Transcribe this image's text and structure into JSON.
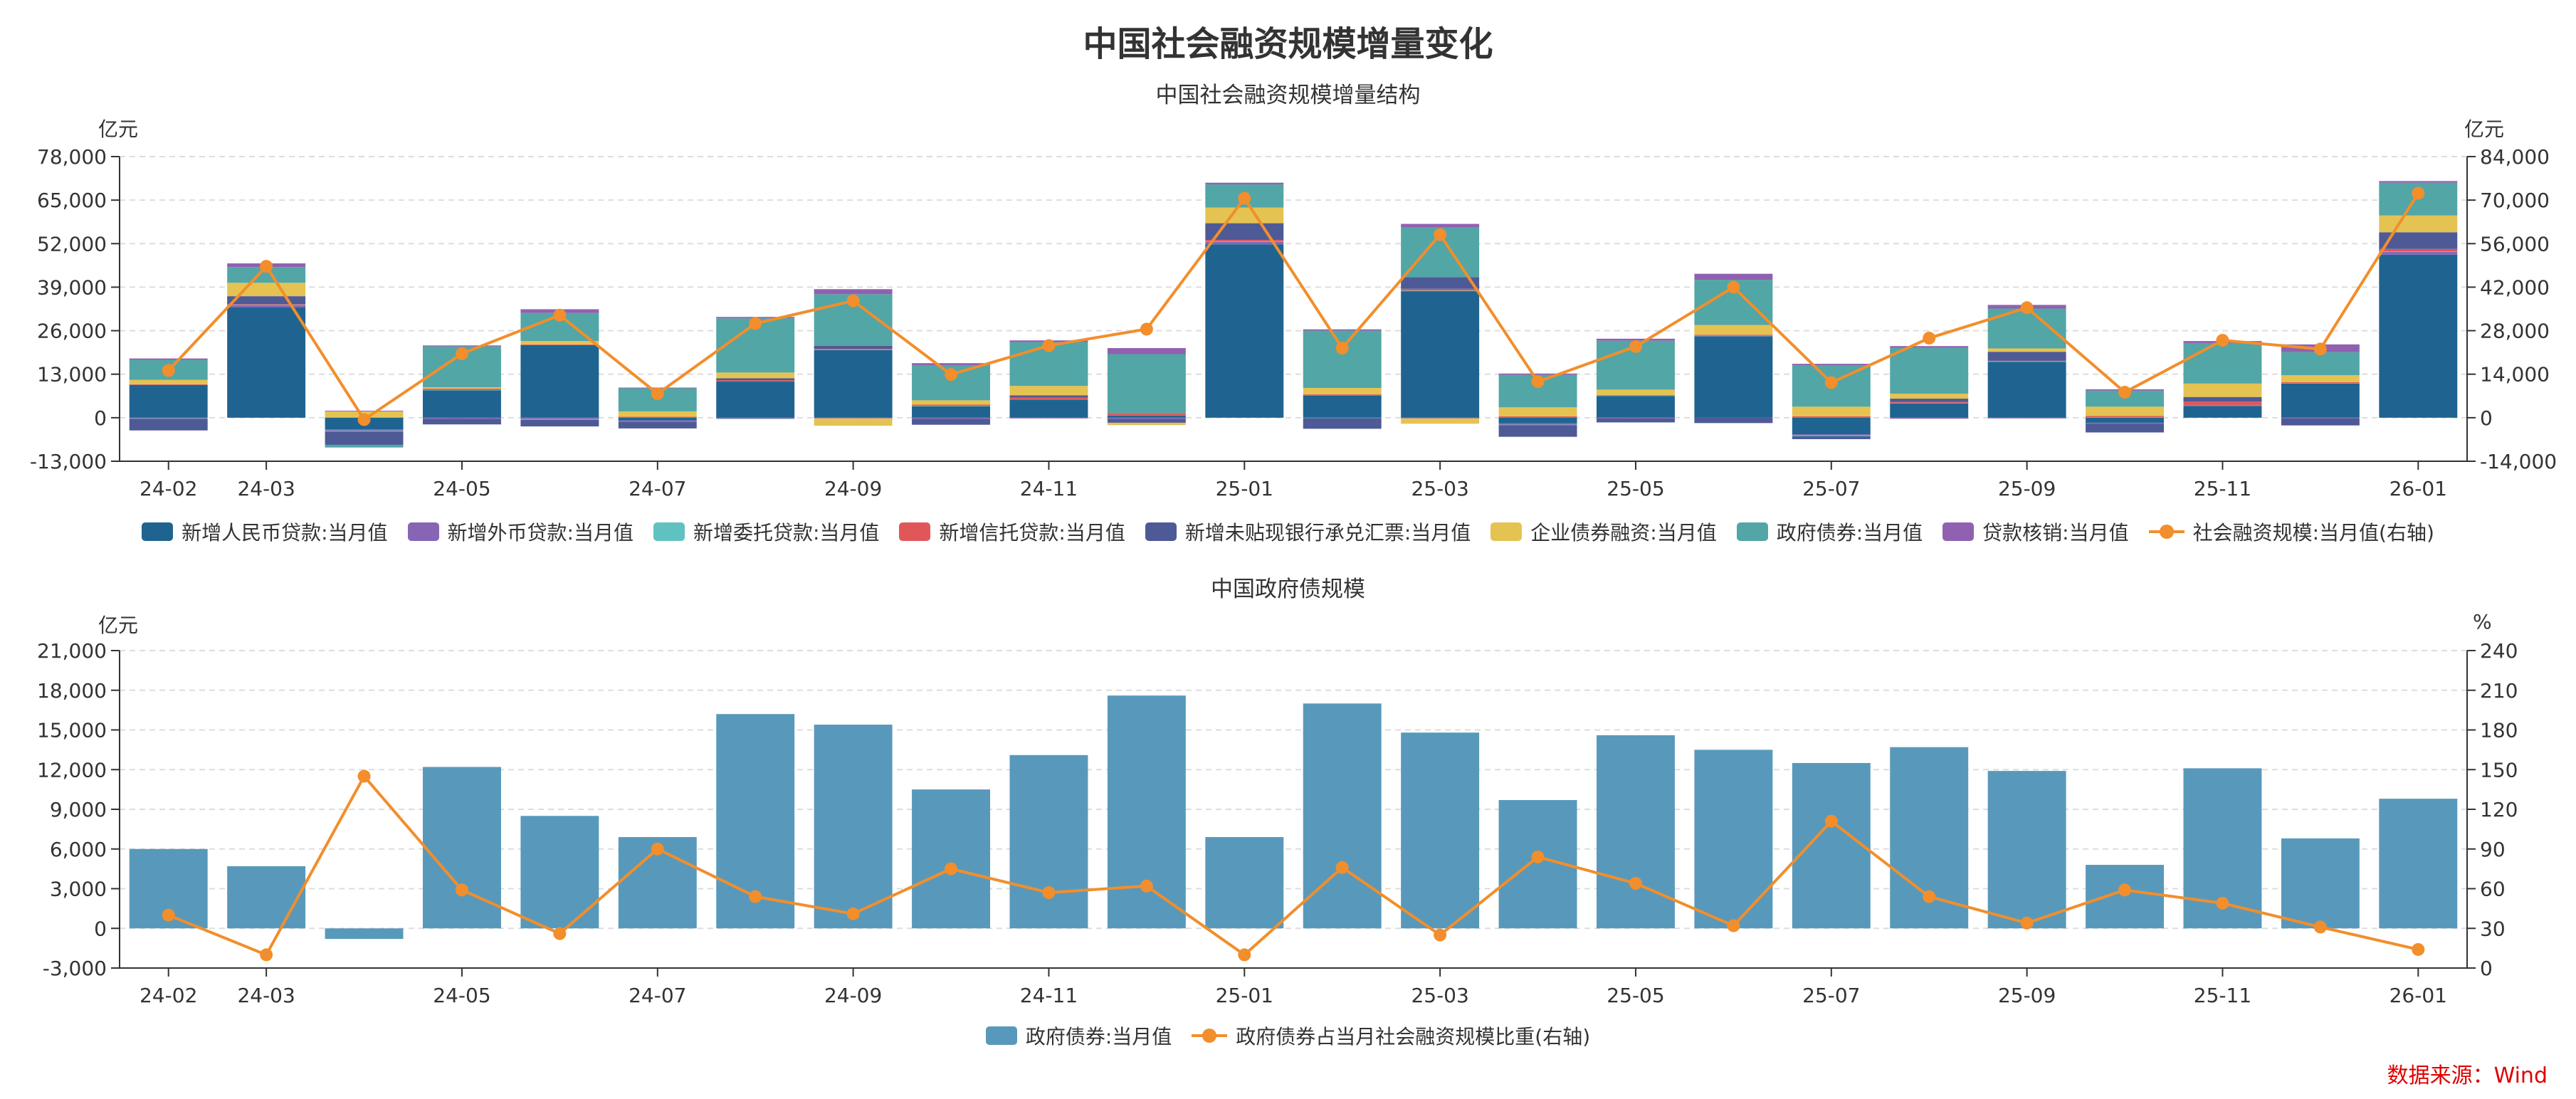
{
  "title": "中国社会融资规模增量变化",
  "source": "数据来源：Wind",
  "colors": {
    "rmb_loans": "#1f6490",
    "fx_loans": "#8765b5",
    "entrusted_loans": "#5fc2c0",
    "trust_loans": "#e15759",
    "bank_acceptance": "#4e5a96",
    "corp_bonds": "#e4c352",
    "gov_bonds": "#52a6a6",
    "loan_writeoffs": "#9061b0",
    "tsf_line": "#f28e2b",
    "gov_bar": "#5899bb"
  },
  "chart_data": [
    {
      "type": "bar",
      "subtype": "stacked bar with line on right axis",
      "subtitle": "中国社会融资规模增量结构",
      "left_unit": "亿元",
      "right_unit": "亿元",
      "ylim_left": [
        -13000,
        78000
      ],
      "left_ticks": [
        -13000,
        0,
        13000,
        26000,
        39000,
        52000,
        65000,
        78000
      ],
      "left_tick_labels": [
        "-13,000",
        "0",
        "13,000",
        "26,000",
        "39,000",
        "52,000",
        "65,000",
        "78,000"
      ],
      "ylim_right": [
        -14000,
        84000
      ],
      "right_ticks": [
        -14000,
        0,
        14000,
        28000,
        42000,
        56000,
        70000,
        84000
      ],
      "right_tick_labels": [
        "-14,000",
        "0",
        "14,000",
        "28,000",
        "42,000",
        "56,000",
        "70,000",
        "84,000"
      ],
      "categories": [
        "24-02",
        "24-03",
        "24-04",
        "24-05",
        "24-06",
        "24-07",
        "24-08",
        "24-09",
        "24-10",
        "24-11",
        "24-12",
        "25-01",
        "25-02",
        "25-03",
        "25-04",
        "25-05",
        "25-06",
        "25-07",
        "25-08",
        "25-09",
        "25-10",
        "25-11",
        "25-12",
        "26-01"
      ],
      "x_tick_labels": [
        "24-02",
        "24-03",
        "24-05",
        "24-07",
        "24-09",
        "24-11",
        "25-01",
        "25-03",
        "25-05",
        "25-07",
        "25-09",
        "25-11",
        "26-01"
      ],
      "grid": true,
      "legend_position": "bottom",
      "series": [
        {
          "name": "新增人民币贷款:当月值",
          "color_key": "rmb_loans",
          "axis": "left",
          "values": [
            9800,
            33000,
            -3500,
            8200,
            21700,
            -800,
            10800,
            20200,
            3400,
            5400,
            700,
            51800,
            6600,
            37800,
            -1700,
            6500,
            24300,
            -5000,
            4300,
            16700,
            -1500,
            3500,
            10200,
            48700
          ]
        },
        {
          "name": "新增外币贷款:当月值",
          "color_key": "fx_loans",
          "axis": "left",
          "values": [
            -200,
            600,
            -400,
            -300,
            -400,
            -300,
            -300,
            -200,
            -300,
            -200,
            -300,
            700,
            200,
            -200,
            -400,
            -200,
            100,
            -300,
            -300,
            -200,
            -300,
            200,
            -200,
            800
          ]
        },
        {
          "name": "新增委托贷款:当月值",
          "color_key": "entrusted_loans",
          "axis": "left",
          "values": [
            -100,
            100,
            -200,
            100,
            -200,
            -100,
            -100,
            100,
            100,
            100,
            100,
            200,
            -100,
            200,
            -100,
            100,
            100,
            -200,
            100,
            100,
            100,
            100,
            100,
            200
          ]
        },
        {
          "name": "新增信托贷款:当月值",
          "color_key": "trust_loans",
          "axis": "left",
          "values": [
            200,
            200,
            100,
            400,
            200,
            300,
            400,
            300,
            400,
            500,
            600,
            400,
            200,
            500,
            400,
            200,
            300,
            400,
            300,
            200,
            400,
            1000,
            300,
            700
          ]
        },
        {
          "name": "新增未贴现银行承兑汇票:当月值",
          "color_key": "bank_acceptance",
          "axis": "left",
          "values": [
            -3500,
            2400,
            -4000,
            -1700,
            -2000,
            -2000,
            600,
            900,
            -1800,
            700,
            -1200,
            5000,
            -3200,
            3500,
            -3500,
            -1200,
            -1600,
            -900,
            1000,
            2700,
            -2600,
            1400,
            -2100,
            5000
          ]
        },
        {
          "name": "企业债券融资:当月值",
          "color_key": "corp_bonds",
          "axis": "left",
          "values": [
            1300,
            4000,
            1800,
            400,
            1000,
            1600,
            1700,
            -2200,
            1300,
            2800,
            -700,
            4700,
            1900,
            -1600,
            2700,
            1600,
            2900,
            2900,
            1500,
            1000,
            2800,
            4000,
            2100,
            5000
          ]
        },
        {
          "name": "政府债券:当月值",
          "color_key": "gov_bonds",
          "axis": "left",
          "values": [
            6000,
            4700,
            -800,
            12200,
            8400,
            6900,
            16200,
            15400,
            10500,
            13100,
            17600,
            6900,
            17100,
            14800,
            9700,
            14600,
            13500,
            12400,
            13700,
            11900,
            4800,
            12100,
            6900,
            9800
          ]
        },
        {
          "name": "贷款核销:当月值",
          "color_key": "loan_writeoffs",
          "axis": "left",
          "values": [
            400,
            1100,
            200,
            300,
            1100,
            200,
            400,
            1500,
            600,
            500,
            1800,
            500,
            400,
            1100,
            400,
            600,
            1800,
            400,
            500,
            1100,
            400,
            600,
            2300,
            500
          ]
        },
        {
          "name": "社会融资规模:当月值(右轴)",
          "color_key": "tsf_line",
          "axis": "right",
          "type": "line",
          "values": [
            15200,
            48700,
            -600,
            20600,
            33000,
            7700,
            30300,
            37600,
            13900,
            23200,
            28500,
            70600,
            22400,
            58900,
            11600,
            22900,
            42000,
            11300,
            25600,
            35400,
            8200,
            24900,
            22100,
            72200
          ]
        }
      ]
    },
    {
      "type": "bar",
      "subtype": "bar with line on right axis",
      "subtitle": "中国政府债规模",
      "left_unit": "亿元",
      "right_unit": "%",
      "ylim_left": [
        -3000,
        21000
      ],
      "left_ticks": [
        -3000,
        0,
        3000,
        6000,
        9000,
        12000,
        15000,
        18000,
        21000
      ],
      "left_tick_labels": [
        "-3,000",
        "0",
        "3,000",
        "6,000",
        "9,000",
        "12,000",
        "15,000",
        "18,000",
        "21,000"
      ],
      "ylim_right": [
        0,
        240
      ],
      "right_ticks": [
        0,
        30,
        60,
        90,
        120,
        150,
        180,
        210,
        240
      ],
      "right_tick_labels": [
        "0",
        "30",
        "60",
        "90",
        "120",
        "150",
        "180",
        "210",
        "240"
      ],
      "categories": [
        "24-02",
        "24-03",
        "24-04",
        "24-05",
        "24-06",
        "24-07",
        "24-08",
        "24-09",
        "24-10",
        "24-11",
        "24-12",
        "25-01",
        "25-02",
        "25-03",
        "25-04",
        "25-05",
        "25-06",
        "25-07",
        "25-08",
        "25-09",
        "25-10",
        "25-11",
        "25-12",
        "26-01"
      ],
      "x_tick_labels": [
        "24-02",
        "24-03",
        "24-05",
        "24-07",
        "24-09",
        "24-11",
        "25-01",
        "25-03",
        "25-05",
        "25-07",
        "25-09",
        "25-11",
        "26-01"
      ],
      "grid": true,
      "legend_position": "bottom",
      "series": [
        {
          "name": "政府债券:当月值",
          "color_key": "gov_bar",
          "axis": "left",
          "type": "bar",
          "values": [
            6000,
            4700,
            -800,
            12200,
            8500,
            6900,
            16200,
            15400,
            10500,
            13100,
            17600,
            6900,
            17000,
            14800,
            9700,
            14600,
            13500,
            12500,
            13700,
            11900,
            4800,
            12100,
            6800,
            9800
          ]
        },
        {
          "name": "政府债券占当月社会融资规模比重(右轴)",
          "color_key": "tsf_line",
          "axis": "right",
          "type": "line",
          "values": [
            40,
            10,
            145,
            59,
            26,
            90,
            54,
            41,
            75,
            57,
            62,
            10,
            76,
            25,
            84,
            64,
            32,
            111,
            54,
            34,
            59,
            49,
            31,
            14
          ]
        }
      ]
    }
  ]
}
